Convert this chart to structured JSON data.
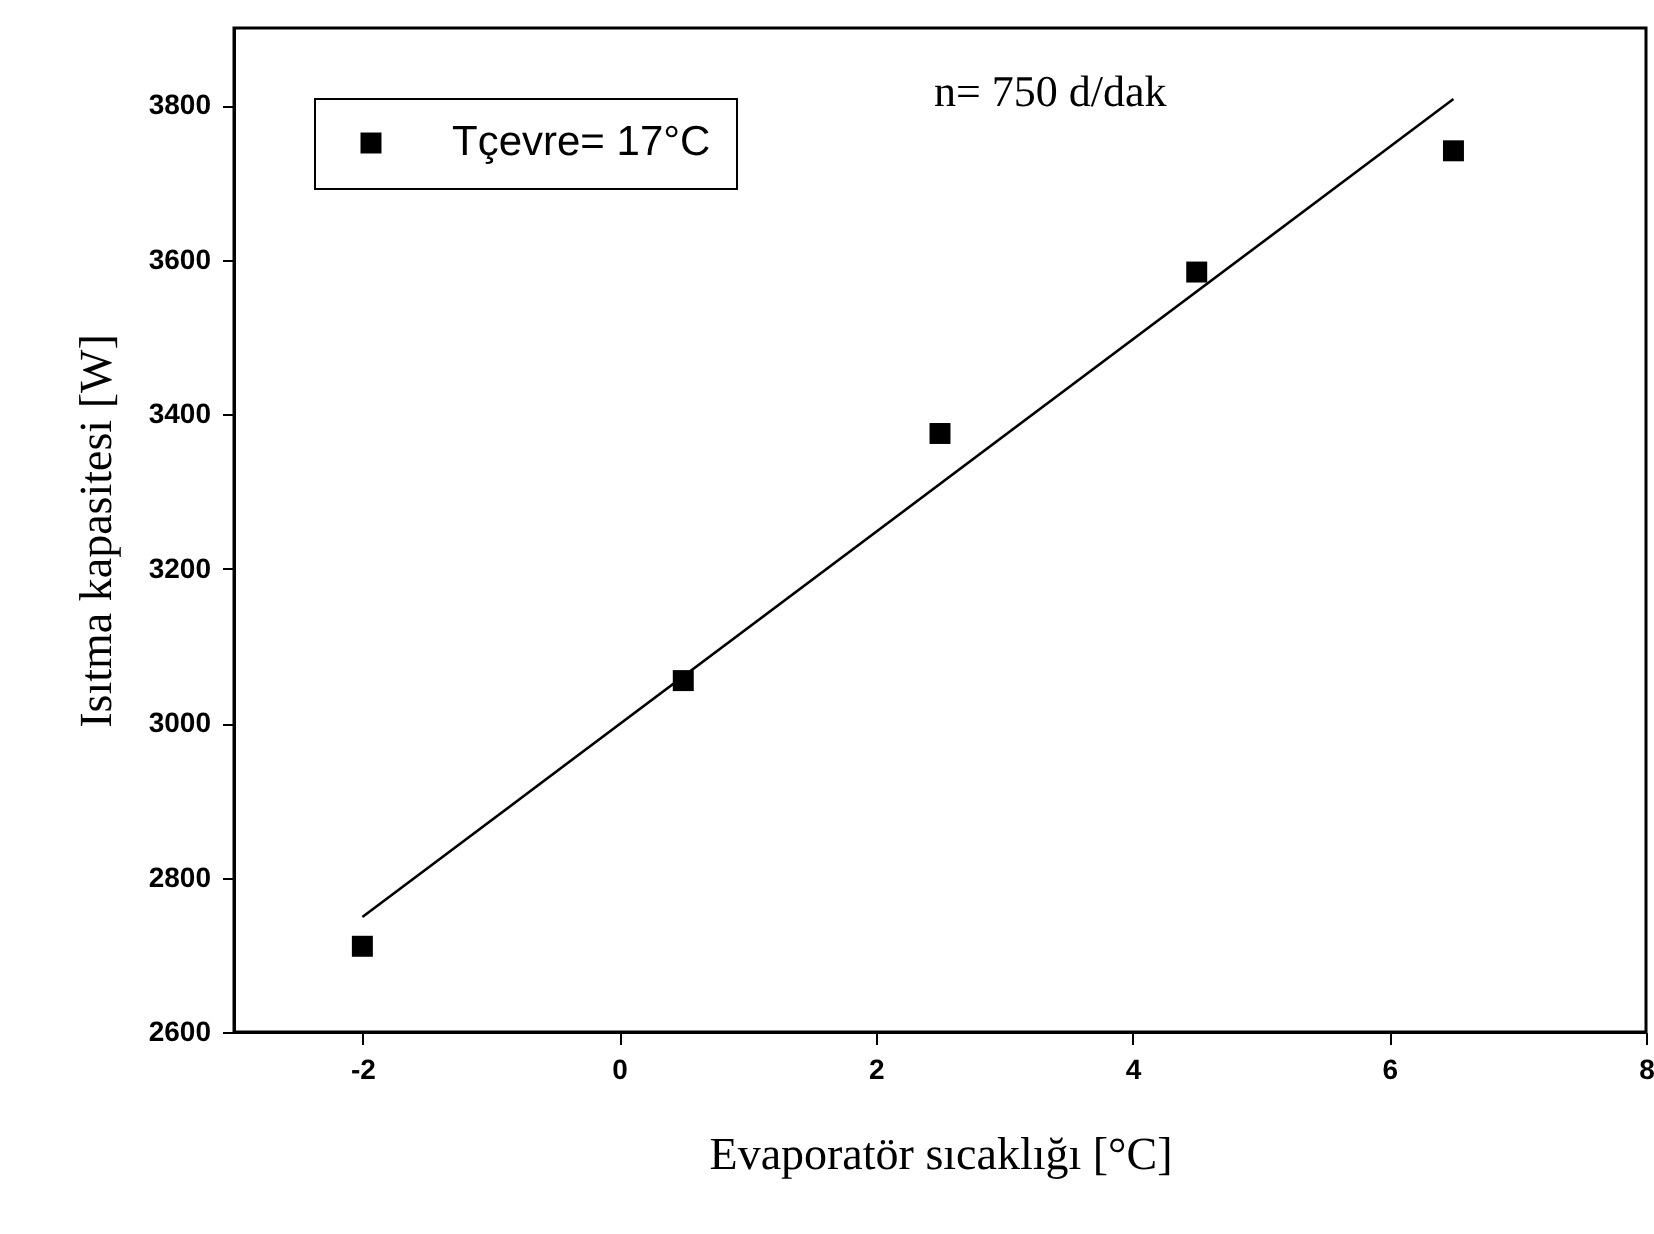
{
  "chart_data": {
    "type": "scatter",
    "xlabel": "Evaporatör sıcaklığı [°C]",
    "ylabel": "Isıtma kapasitesi [W]",
    "annotations": [
      "n= 750 d/dak"
    ],
    "series": [
      {
        "name": "Tçevre= 17°C",
        "color": "#000000",
        "marker": "square",
        "x": [
          -2,
          0.5,
          2.5,
          4.5,
          6.5
        ],
        "values": [
          2711,
          3055,
          3375,
          3584,
          3741
        ]
      },
      {
        "type": "line",
        "color": "#000000",
        "marker": "none",
        "x": [
          -2,
          6.5
        ],
        "values": [
          2749,
          3808
        ]
      }
    ],
    "xlim": [
      -3,
      8
    ],
    "xticks": [
      -2,
      0,
      2,
      4,
      6,
      8
    ],
    "ylim": [
      2600,
      3900
    ],
    "yticks": [
      2600,
      2800,
      3000,
      3200,
      3400,
      3600,
      3800
    ],
    "legend": "top left",
    "grid": false
  }
}
